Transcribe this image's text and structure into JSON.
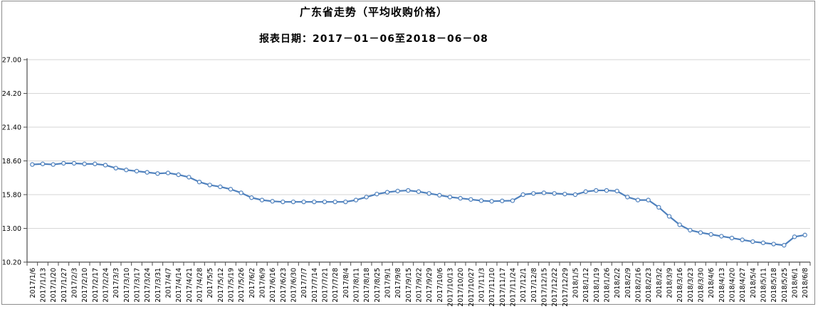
{
  "header": {
    "title": "广东省走势（平均收购价格）",
    "subtitle": "报表日期：2017－01－06至2018－06－08"
  },
  "chart_data": {
    "type": "line",
    "title": "广东省走势（平均收购价格）",
    "subtitle": "报表日期：2017－01－06至2018－06－08",
    "x": [
      "2017/1/6",
      "2017/1/13",
      "2017/1/20",
      "2017/1/27",
      "2017/2/3",
      "2017/2/10",
      "2017/2/17",
      "2017/2/24",
      "2017/3/3",
      "2017/3/10",
      "2017/3/17",
      "2017/3/24",
      "2017/3/31",
      "2017/4/7",
      "2017/4/14",
      "2017/4/21",
      "2017/4/28",
      "2017/5/5",
      "2017/5/12",
      "2017/5/19",
      "2017/5/26",
      "2017/6/2",
      "2017/6/9",
      "2017/6/16",
      "2017/6/23",
      "2017/6/30",
      "2017/7/7",
      "2017/7/14",
      "2017/7/21",
      "2017/7/28",
      "2017/8/4",
      "2017/8/11",
      "2017/8/18",
      "2017/8/25",
      "2017/9/1",
      "2017/9/8",
      "2017/9/15",
      "2017/9/22",
      "2017/9/29",
      "2017/10/6",
      "2017/10/13",
      "2017/10/20",
      "2017/10/27",
      "2017/11/3",
      "2017/11/10",
      "2017/11/17",
      "2017/11/24",
      "2017/12/1",
      "2017/12/8",
      "2017/12/15",
      "2017/12/22",
      "2017/12/29",
      "2018/1/5",
      "2018/1/12",
      "2018/1/19",
      "2018/1/26",
      "2018/2/2",
      "2018/2/9",
      "2018/2/16",
      "2018/2/23",
      "2018/3/2",
      "2018/3/9",
      "2018/3/16",
      "2018/3/23",
      "2018/3/30",
      "2018/4/6",
      "2018/4/13",
      "2018/4/20",
      "2018/4/27",
      "2018/5/4",
      "2018/5/11",
      "2018/5/18",
      "2018/5/25",
      "2018/6/1",
      "2018/6/8"
    ],
    "series": [
      {
        "name": "平均收购价格",
        "color": "#4f81bd",
        "marker": "circle",
        "marker_fill": "#ffffff",
        "values": [
          18.3,
          18.35,
          18.3,
          18.4,
          18.4,
          18.35,
          18.35,
          18.25,
          18.0,
          17.85,
          17.75,
          17.65,
          17.55,
          17.6,
          17.45,
          17.25,
          16.85,
          16.6,
          16.45,
          16.25,
          15.95,
          15.55,
          15.35,
          15.25,
          15.2,
          15.2,
          15.2,
          15.2,
          15.2,
          15.2,
          15.2,
          15.35,
          15.6,
          15.85,
          16.0,
          16.1,
          16.15,
          16.05,
          15.9,
          15.75,
          15.6,
          15.5,
          15.4,
          15.3,
          15.25,
          15.28,
          15.3,
          15.8,
          15.9,
          15.95,
          15.9,
          15.85,
          15.8,
          16.05,
          16.15,
          16.15,
          16.1,
          15.6,
          15.35,
          15.35,
          14.75,
          14.0,
          13.3,
          12.85,
          12.65,
          12.5,
          12.35,
          12.2,
          12.05,
          11.9,
          11.8,
          11.7,
          11.6,
          12.3,
          12.45
        ]
      }
    ],
    "xlabel": "",
    "ylabel": "",
    "ylim": [
      10.2,
      27.0
    ],
    "ytick_interval": 2.8,
    "yticks": [
      "27.00",
      "24.20",
      "21.40",
      "18.60",
      "15.80",
      "13.00",
      "10.20"
    ],
    "grid": true,
    "legend_position": "none",
    "gridline_color": "#d6d6d6",
    "axis_color": "#4d4d4d",
    "tick_label_color": "#000000"
  }
}
